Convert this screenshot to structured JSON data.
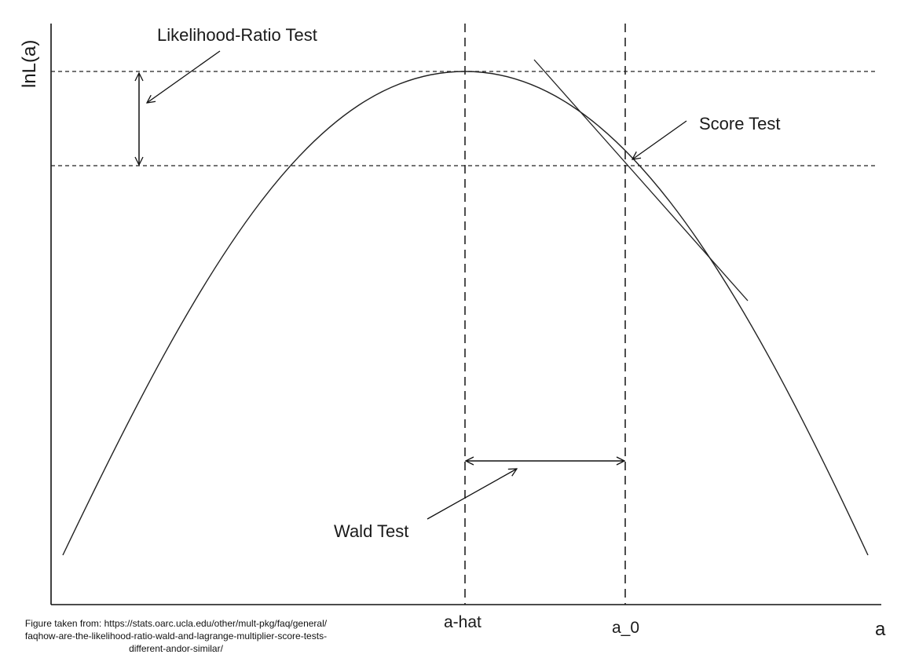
{
  "figure": {
    "y_axis_label": "lnL(a)",
    "x_axis_label": "a",
    "ticks": {
      "a_hat": "a-hat",
      "a_0": "a_0"
    },
    "annotations": {
      "likelihood_ratio": "Likelihood-Ratio Test",
      "score": "Score Test",
      "wald": "Wald Test"
    },
    "caption": "Figure taken from: https://stats.oarc.ucla.edu/other/mult-pkg/faq/general/ faqhow-are-the-likelihood-ratio-wald-and-lagrange-multiplier-score-tests- different-andor-similar/"
  }
}
